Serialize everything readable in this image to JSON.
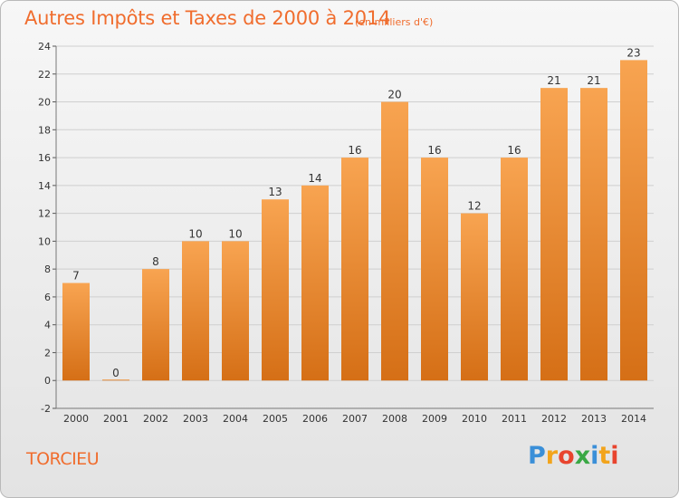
{
  "header": {
    "title": "Autres Impôts et Taxes de 2000 à 2014",
    "subtitle": "(en milliers d'€)"
  },
  "footer": {
    "place": "TORCIEU",
    "brand_letters": [
      "P",
      "r",
      "o",
      "x",
      "i",
      "t",
      "i"
    ],
    "brand_colors": [
      "#3a8fd8",
      "#f2a41c",
      "#e8442e",
      "#3aa845",
      "#3a8fd8",
      "#f2a41c",
      "#e8442e"
    ]
  },
  "colors": {
    "bar_top": "#f8a451",
    "bar_bottom": "#d56f16",
    "grid": "#cfcfcf",
    "axis_text": "#333333",
    "accent": "#f06d2e"
  },
  "chart_data": {
    "type": "bar",
    "title": "Autres Impôts et Taxes de 2000 à 2014",
    "subtitle": "(en milliers d'€)",
    "categories": [
      "2000",
      "2001",
      "2002",
      "2003",
      "2004",
      "2005",
      "2006",
      "2007",
      "2008",
      "2009",
      "2010",
      "2011",
      "2012",
      "2013",
      "2014"
    ],
    "values": [
      7,
      0,
      8,
      10,
      10,
      13,
      14,
      16,
      20,
      16,
      12,
      16,
      21,
      21,
      23
    ],
    "data_labels": [
      "7",
      "0",
      "8",
      "10",
      "10",
      "13",
      "14",
      "16",
      "20",
      "16",
      "12",
      "16",
      "21",
      "21",
      "23"
    ],
    "ylim": [
      -2,
      24
    ],
    "yticks": [
      -2,
      0,
      2,
      4,
      6,
      8,
      10,
      12,
      14,
      16,
      18,
      20,
      22,
      24
    ],
    "grid": true,
    "legend": "none"
  }
}
